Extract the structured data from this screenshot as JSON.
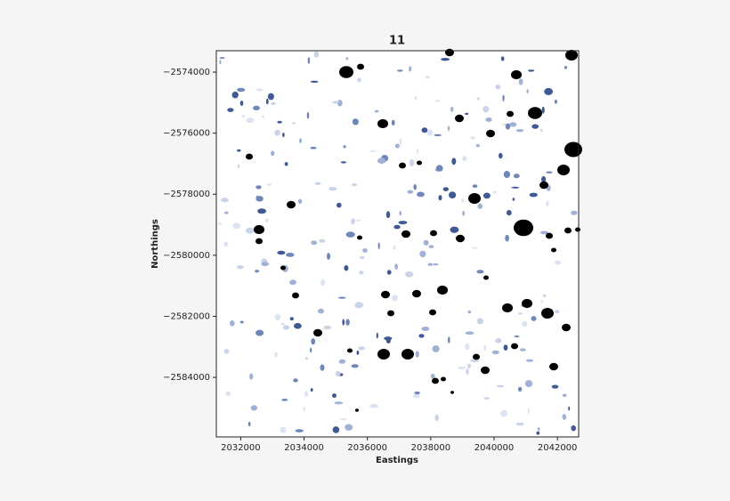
{
  "chart_data": {
    "type": "image",
    "title": "11",
    "xlabel": "Eastings",
    "ylabel": "Northings",
    "xlim": [
      2031230,
      2042670
    ],
    "ylim": [
      -2585950,
      -2573300
    ],
    "xticks": [
      2032000,
      2034000,
      2036000,
      2038000,
      2040000,
      2042000
    ],
    "yticks": [
      {
        "value": -2574000,
        "label": "−2574000"
      },
      {
        "value": -2576000,
        "label": "−2576000"
      },
      {
        "value": -2578000,
        "label": "−2578000"
      },
      {
        "value": -2580000,
        "label": "−2580000"
      },
      {
        "value": -2582000,
        "label": "−2582000"
      },
      {
        "value": -2584000,
        "label": "−2584000"
      }
    ]
  }
}
